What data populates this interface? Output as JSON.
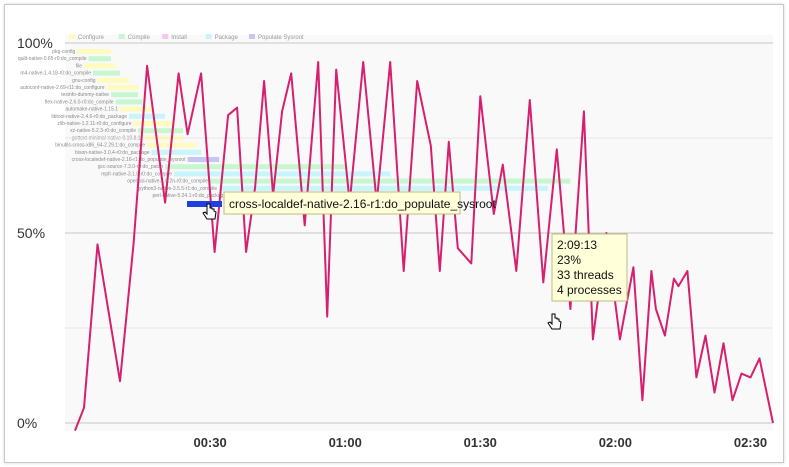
{
  "chart_data": {
    "type": "line",
    "y_axis": {
      "ticks": [
        "100%",
        "50%",
        "0%"
      ],
      "range": [
        0,
        100
      ]
    },
    "x_axis": {
      "ticks": [
        "00:30",
        "01:00",
        "01:30",
        "02:00",
        "02:30"
      ],
      "range_seconds": [
        0,
        155
      ]
    },
    "grid": true,
    "legend": {
      "items": [
        {
          "label": "Configure",
          "color": "#fffbbf"
        },
        {
          "label": "Compile",
          "color": "#c7f7d0"
        },
        {
          "label": "Install",
          "color": "#f8c4f1"
        },
        {
          "label": "Package",
          "color": "#c8f4fb"
        },
        {
          "label": "Populate Sysroot",
          "color": "#c6c6f6"
        }
      ]
    },
    "series": [
      {
        "color": "#d6206e",
        "x_seconds": [
          0,
          2,
          5,
          10,
          13,
          16,
          20,
          23,
          25,
          28,
          31,
          34,
          36,
          38,
          40,
          42,
          44,
          46,
          48,
          51,
          54,
          56,
          58,
          61,
          64,
          67,
          70,
          73,
          76,
          79,
          81,
          83,
          85,
          88,
          90,
          93,
          95,
          98,
          101,
          104,
          107,
          110,
          113,
          115,
          118,
          121,
          124,
          126,
          128,
          129,
          131,
          133,
          134,
          136,
          138,
          140,
          142,
          144,
          146,
          148,
          150,
          152,
          155
        ],
        "y_percent": [
          -2,
          4,
          47,
          11,
          47,
          94,
          58,
          92,
          76,
          92,
          45,
          81,
          83,
          45,
          62,
          90,
          60,
          82,
          92,
          52,
          95,
          28,
          93,
          58,
          95,
          58,
          95,
          40,
          90,
          73,
          40,
          74,
          46,
          42,
          86,
          55,
          68,
          40,
          85,
          37,
          72,
          30,
          82,
          22,
          50,
          22,
          41,
          6,
          40,
          30,
          23,
          38,
          36,
          40,
          12,
          23,
          8,
          21,
          6,
          13,
          12,
          17,
          0
        ]
      }
    ],
    "task_bars": [
      {
        "label": "pkg-config",
        "start": 0.5,
        "end": 8,
        "type": "configure"
      },
      {
        "label": "quilt-native-0.65-r0:do_compile",
        "start": 3,
        "end": 8,
        "type": "compile"
      },
      {
        "label": "file",
        "start": 2,
        "end": 9,
        "type": "configure"
      },
      {
        "label": "m4-native-1.4.18-r0:do_compile",
        "start": 4,
        "end": 10,
        "type": "compile"
      },
      {
        "label": "gnu-config",
        "start": 5,
        "end": 12,
        "type": "configure"
      },
      {
        "label": "autoconf-native-2.69-r11:do_configure",
        "start": 7,
        "end": 14,
        "type": "configure"
      },
      {
        "label": "texinfo-dummy-native",
        "start": 8,
        "end": 14,
        "type": "compile"
      },
      {
        "label": "flex-native-2.6.0-r0:do_compile",
        "start": 9,
        "end": 15,
        "type": "compile"
      },
      {
        "label": "automake-native-1.15.1",
        "start": 10,
        "end": 17,
        "type": "configure"
      },
      {
        "label": "libtool-native-2.4.6-r0:do_package",
        "start": 12,
        "end": 20,
        "type": "package"
      },
      {
        "label": "zlib-native-1.2.11-r0:do_configure",
        "start": 13,
        "end": 22,
        "type": "configure"
      },
      {
        "label": "xz-native-5.2.3-r0:do_compile",
        "start": 14,
        "end": 24,
        "type": "compile"
      },
      {
        "label": "gettext-minimal-native-0.19.8.1",
        "start": 15,
        "end": 24,
        "type": "configure"
      },
      {
        "label": "binutils-cross-x86_64-2.29.1:do_compile",
        "start": 16,
        "end": 27,
        "type": "configure"
      },
      {
        "label": "bison-native-3.0.4-r0:do_package",
        "start": 17,
        "end": 28,
        "type": "package"
      },
      {
        "label": "cross-localedef-native-2.16-r1:do_populate_sysroot",
        "start": 25,
        "end": 32,
        "type": "populate_sysroot"
      },
      {
        "label": "gcc-source-7.3.0-r0:do_patch",
        "start": 20,
        "end": 60,
        "type": "compile"
      },
      {
        "label": "mpfr-native-3.1.5-r0:do_compile",
        "start": 22,
        "end": 70,
        "type": "package"
      },
      {
        "label": "openssl-native-1.0.2n-r0:do_compile",
        "start": 30,
        "end": 110,
        "type": "compile"
      },
      {
        "label": "python3-native-3.5.5-r1:do_compile",
        "start": 32,
        "end": 105,
        "type": "package"
      },
      {
        "label": "perl-native-5.24.1-r0:do_package",
        "start": 34,
        "end": 60,
        "type": "compile"
      }
    ],
    "hover_task_label": "cross-localdef-native-2.16-r1:do_populate_sysroot",
    "tooltip": {
      "time": "2:09:13",
      "percent": "23%",
      "threads": "33 threads",
      "processes": "4 processes"
    }
  }
}
